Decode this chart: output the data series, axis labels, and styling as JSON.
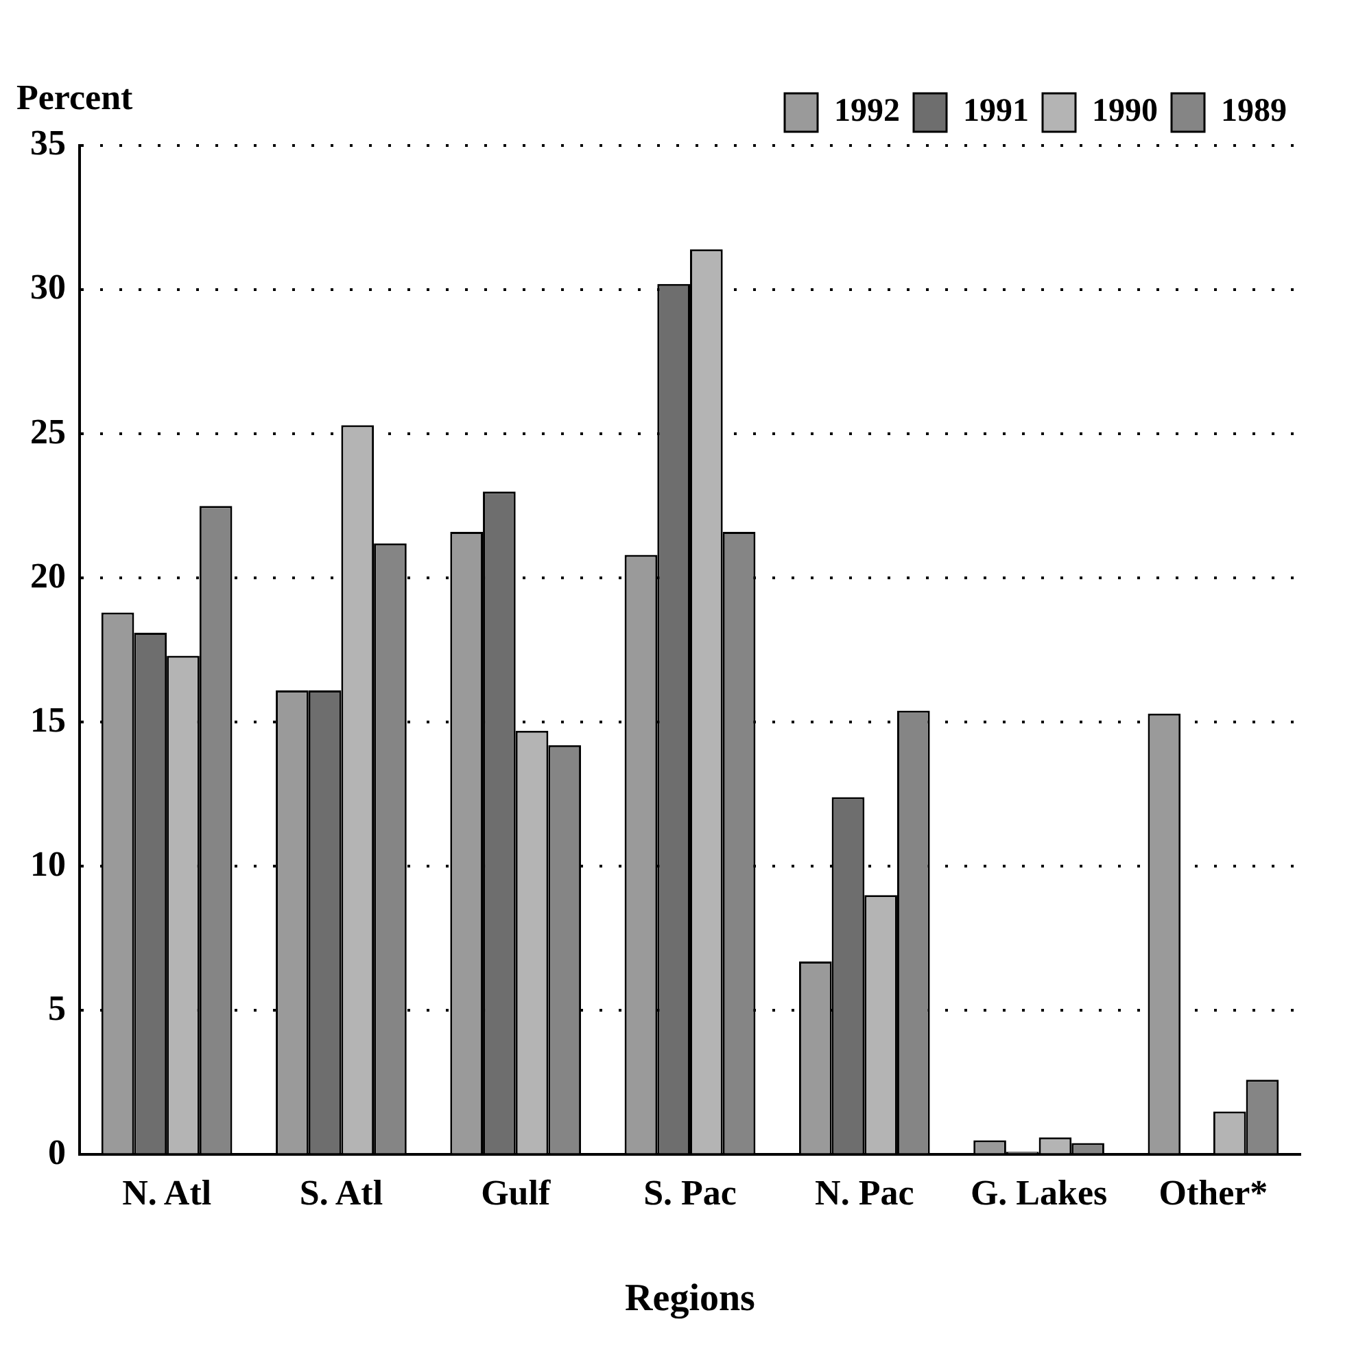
{
  "chart_data": {
    "type": "bar",
    "xlabel": "Regions",
    "ylabel": "Percent",
    "categories": [
      "N. Atl",
      "S. Atl",
      "Gulf",
      "S. Pac",
      "N. Pac",
      "G. Lakes",
      "Other*"
    ],
    "series": [
      {
        "name": "1992",
        "color": "#9a9a9a",
        "values": [
          18.8,
          16.1,
          21.6,
          20.8,
          6.7,
          0.5,
          15.3
        ]
      },
      {
        "name": "1991",
        "color": "#6e6e6e",
        "values": [
          18.1,
          16.1,
          23.0,
          30.2,
          12.4,
          0.1,
          0
        ]
      },
      {
        "name": "1990",
        "color": "#b4b4b4",
        "values": [
          17.3,
          25.3,
          14.7,
          31.4,
          9.0,
          0.6,
          1.5
        ]
      },
      {
        "name": "1989",
        "color": "#858585",
        "values": [
          22.5,
          21.2,
          14.2,
          21.6,
          15.4,
          0.4,
          2.6
        ]
      }
    ],
    "ylim": [
      0,
      35
    ],
    "yticks": [
      0,
      5,
      10,
      15,
      20,
      25,
      30,
      35
    ],
    "grid": "y",
    "legend": "top right"
  }
}
